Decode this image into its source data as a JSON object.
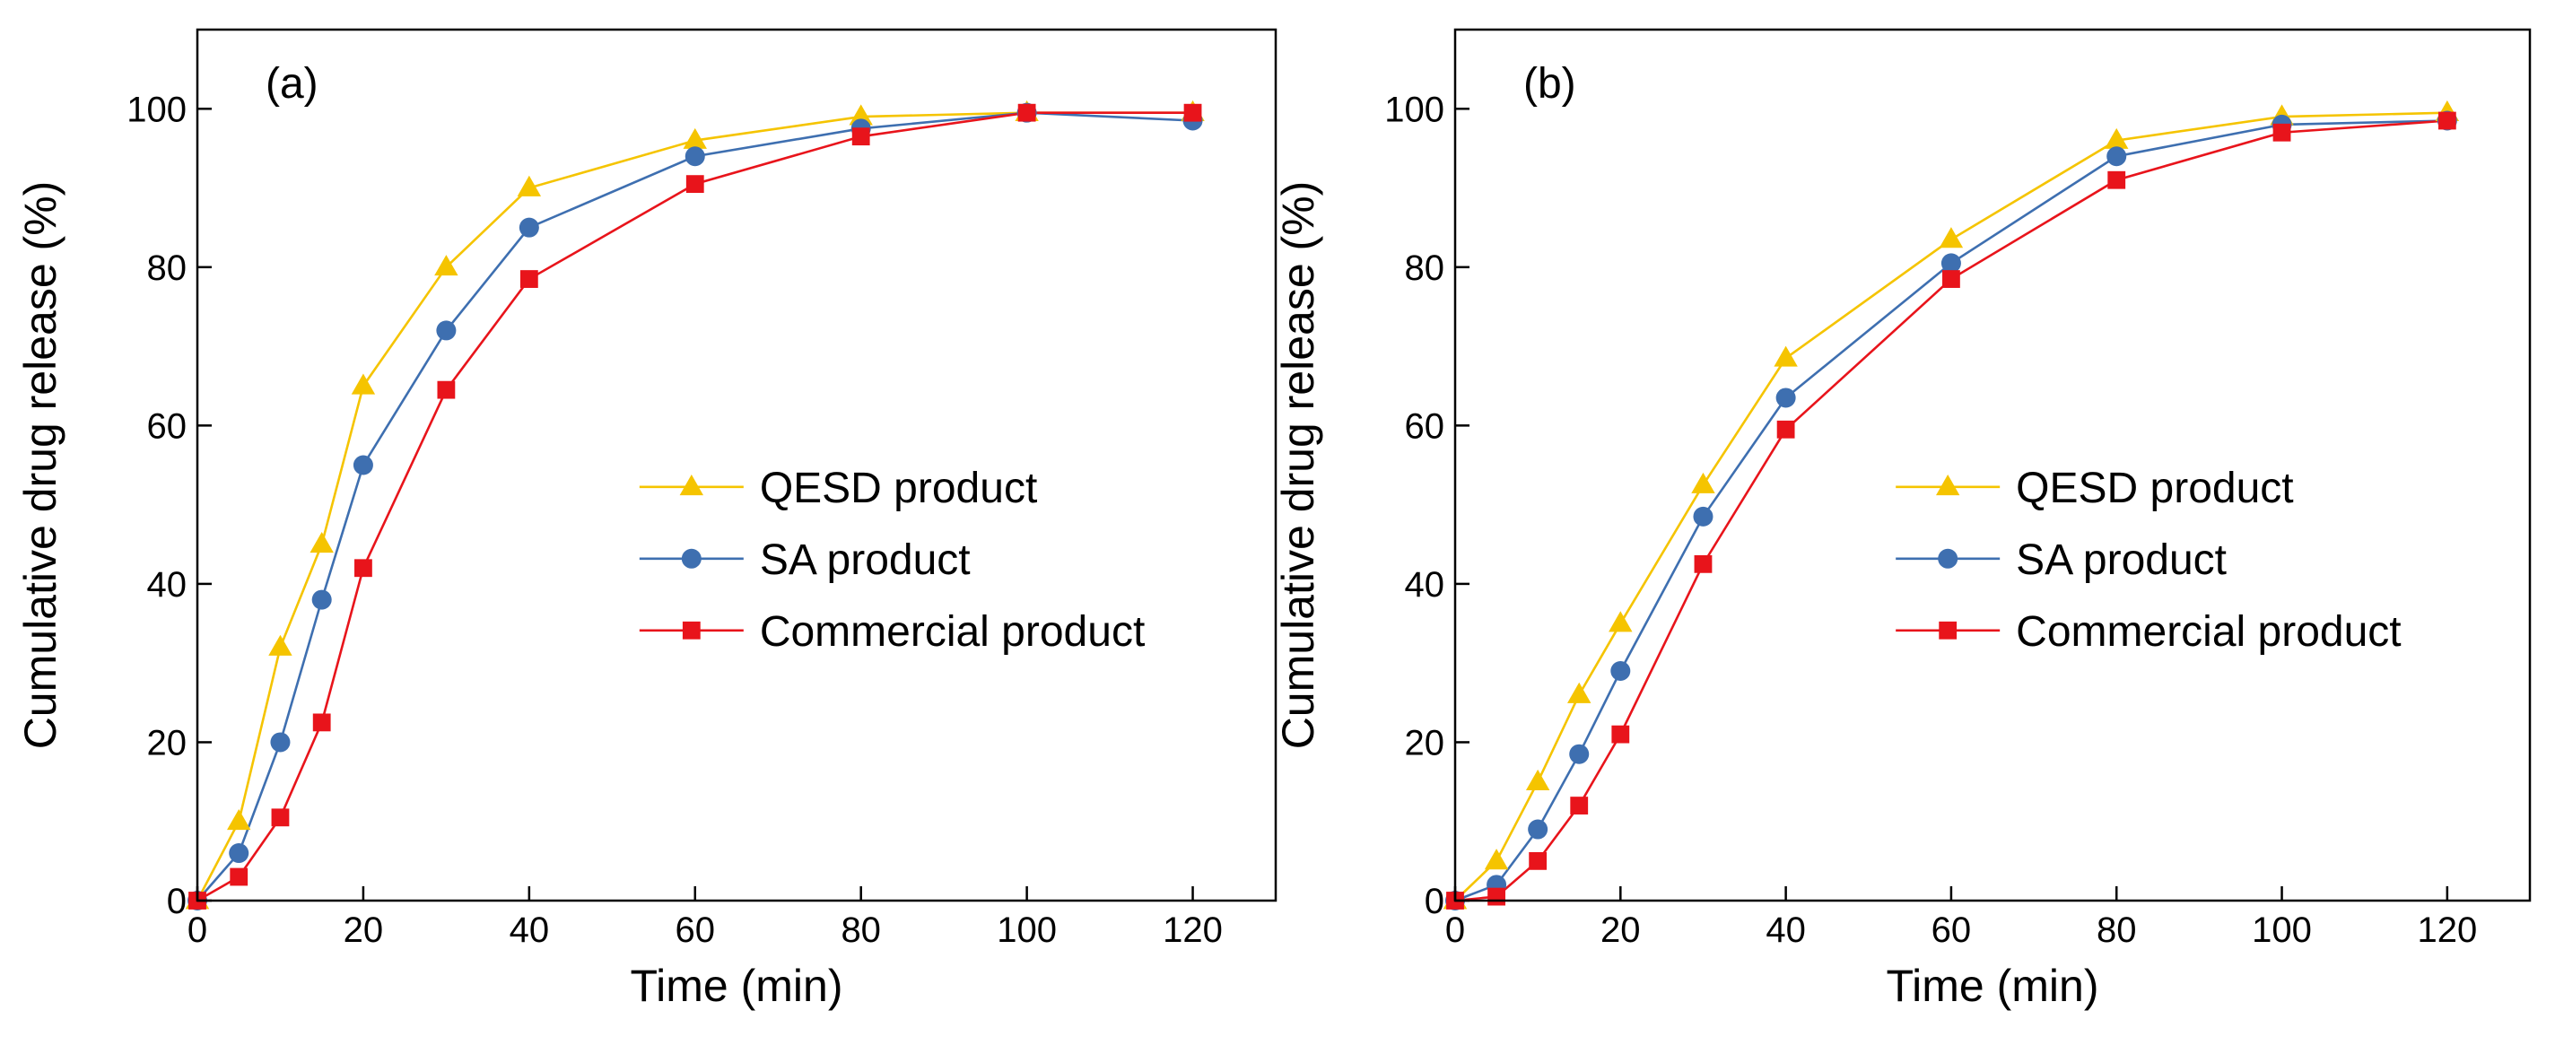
{
  "chart_data": [
    {
      "type": "line",
      "label": "(a)",
      "xlabel": "Time (min)",
      "ylabel": "Cumulative drug release (%)",
      "x": [
        0,
        5,
        10,
        15,
        20,
        30,
        40,
        60,
        80,
        100,
        120
      ],
      "xlim": [
        0,
        130
      ],
      "xticks": [
        0,
        20,
        40,
        60,
        80,
        100,
        120
      ],
      "ylim": [
        0,
        110
      ],
      "yticks": [
        0,
        20,
        40,
        60,
        80,
        100
      ],
      "legend": "center right",
      "series": [
        {
          "name": "QESD product",
          "color": "#f5c400",
          "marker": "triangle",
          "values": [
            0,
            10,
            32,
            45,
            65,
            80,
            90,
            96,
            99,
            99.5,
            99.5
          ]
        },
        {
          "name": "SA product",
          "color": "#3e6fb0",
          "marker": "circle",
          "values": [
            0,
            6,
            20,
            38,
            55,
            72,
            85,
            94,
            97.5,
            99.5,
            98.5
          ]
        },
        {
          "name": "Commercial product",
          "color": "#e8141b",
          "marker": "square",
          "values": [
            0,
            3,
            10.5,
            22.5,
            42,
            64.5,
            78.5,
            90.5,
            96.5,
            99.5,
            99.5
          ]
        }
      ]
    },
    {
      "type": "line",
      "label": "(b)",
      "xlabel": "Time (min)",
      "ylabel": "Cumulative drug release (%)",
      "x": [
        0,
        5,
        10,
        15,
        20,
        30,
        40,
        60,
        80,
        100,
        120
      ],
      "xlim": [
        0,
        130
      ],
      "xticks": [
        0,
        20,
        40,
        60,
        80,
        100,
        120
      ],
      "ylim": [
        0,
        110
      ],
      "yticks": [
        0,
        20,
        40,
        60,
        80,
        100
      ],
      "legend": "center right",
      "series": [
        {
          "name": "QESD product",
          "color": "#f5c400",
          "marker": "triangle",
          "values": [
            0,
            5,
            15,
            26,
            35,
            52.5,
            68.5,
            83.5,
            96,
            99,
            99.5
          ]
        },
        {
          "name": "SA product",
          "color": "#3e6fb0",
          "marker": "circle",
          "values": [
            0,
            2,
            9,
            18.5,
            29,
            48.5,
            63.5,
            80.5,
            94,
            98,
            98.5
          ]
        },
        {
          "name": "Commercial product",
          "color": "#e8141b",
          "marker": "square",
          "values": [
            0,
            0.5,
            5,
            12,
            21,
            42.5,
            59.5,
            78.5,
            91,
            97,
            98.5
          ]
        }
      ]
    }
  ]
}
